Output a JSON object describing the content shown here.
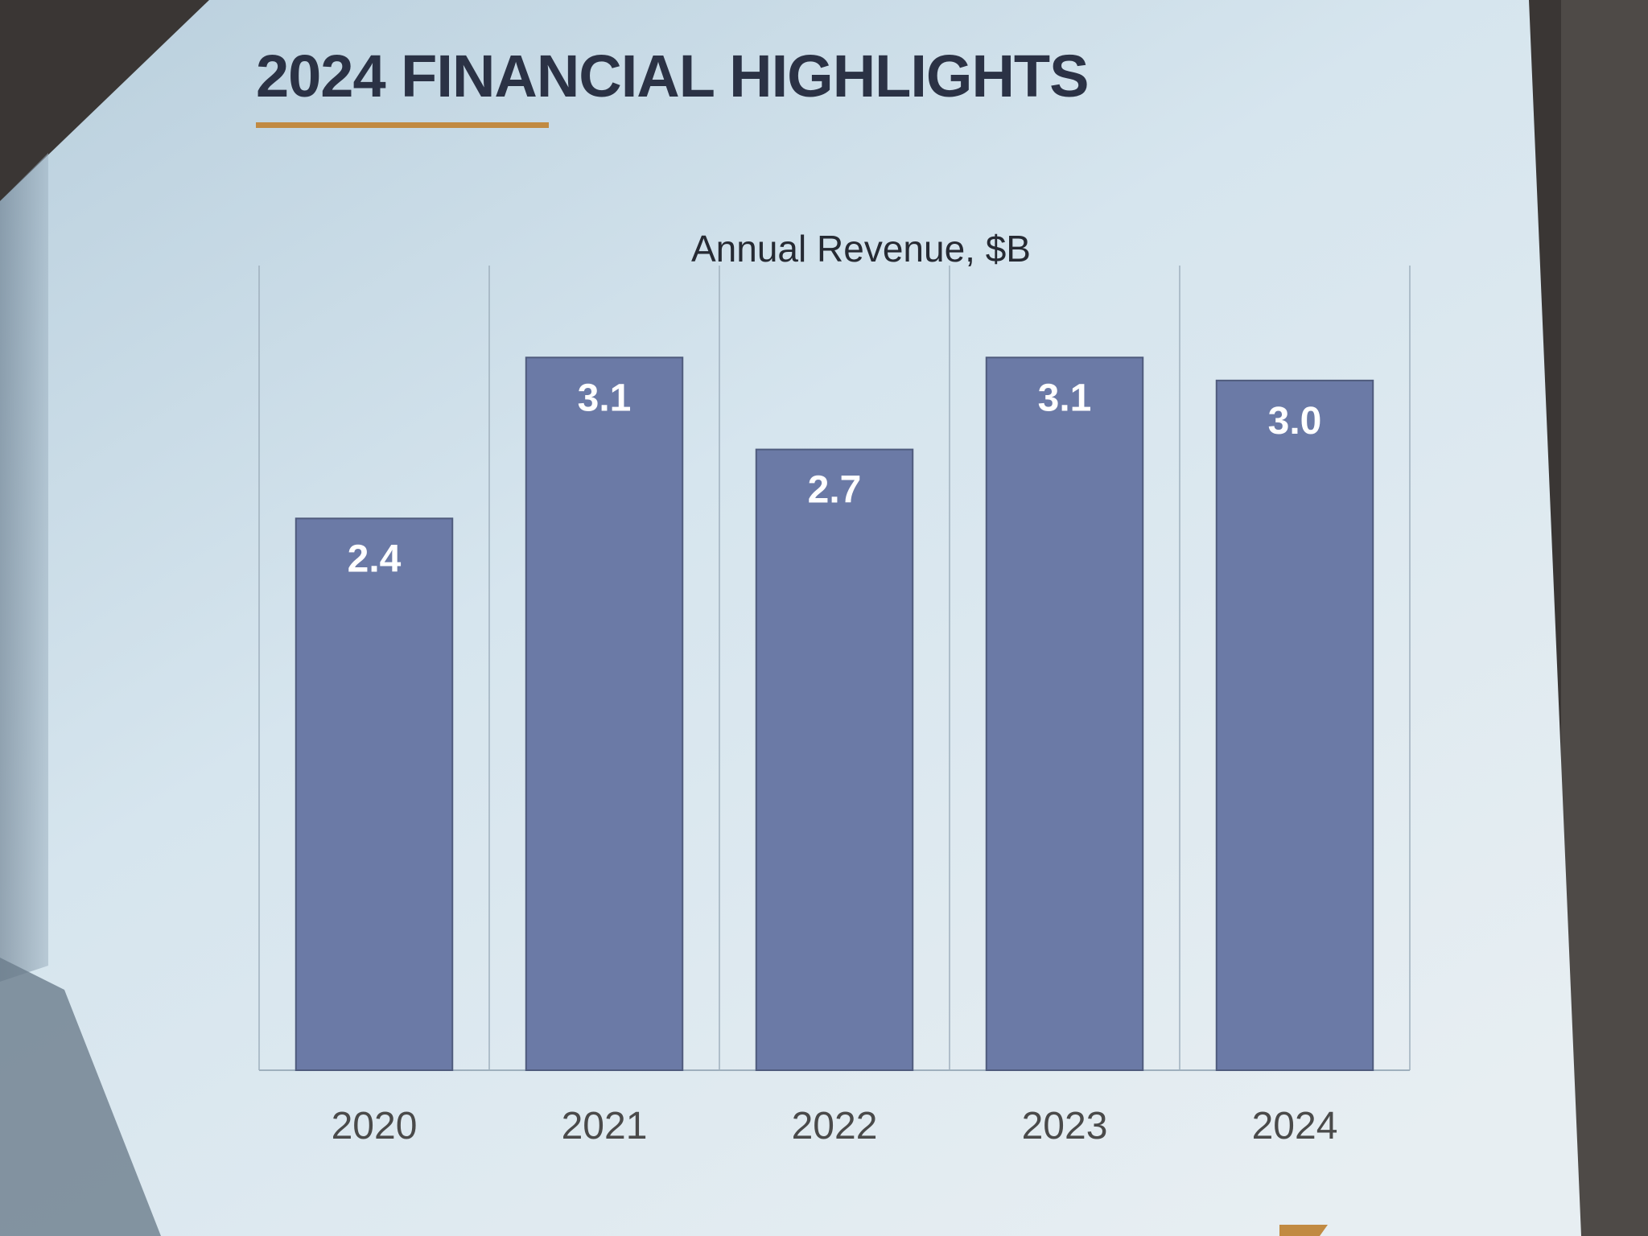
{
  "slide": {
    "title": "2024 FINANCIAL HIGHLIGHTS"
  },
  "colors": {
    "accent_underline": "#c18a42",
    "bar_fill": "#6b7aa6",
    "bar_label": "#ffffff",
    "title_text": "#2b3245",
    "slide_background": "#c9dbe6"
  },
  "chart_data": {
    "type": "bar",
    "title": "Annual Revenue, $B",
    "xlabel": "",
    "ylabel": "",
    "categories": [
      "2020",
      "2021",
      "2022",
      "2023",
      "2024"
    ],
    "values": [
      2.4,
      3.1,
      2.7,
      3.1,
      3.0
    ],
    "value_labels": [
      "2.4",
      "3.1",
      "2.7",
      "3.1",
      "3.0"
    ],
    "ylim": [
      0,
      3.5
    ],
    "grid": false,
    "legend": "none"
  }
}
